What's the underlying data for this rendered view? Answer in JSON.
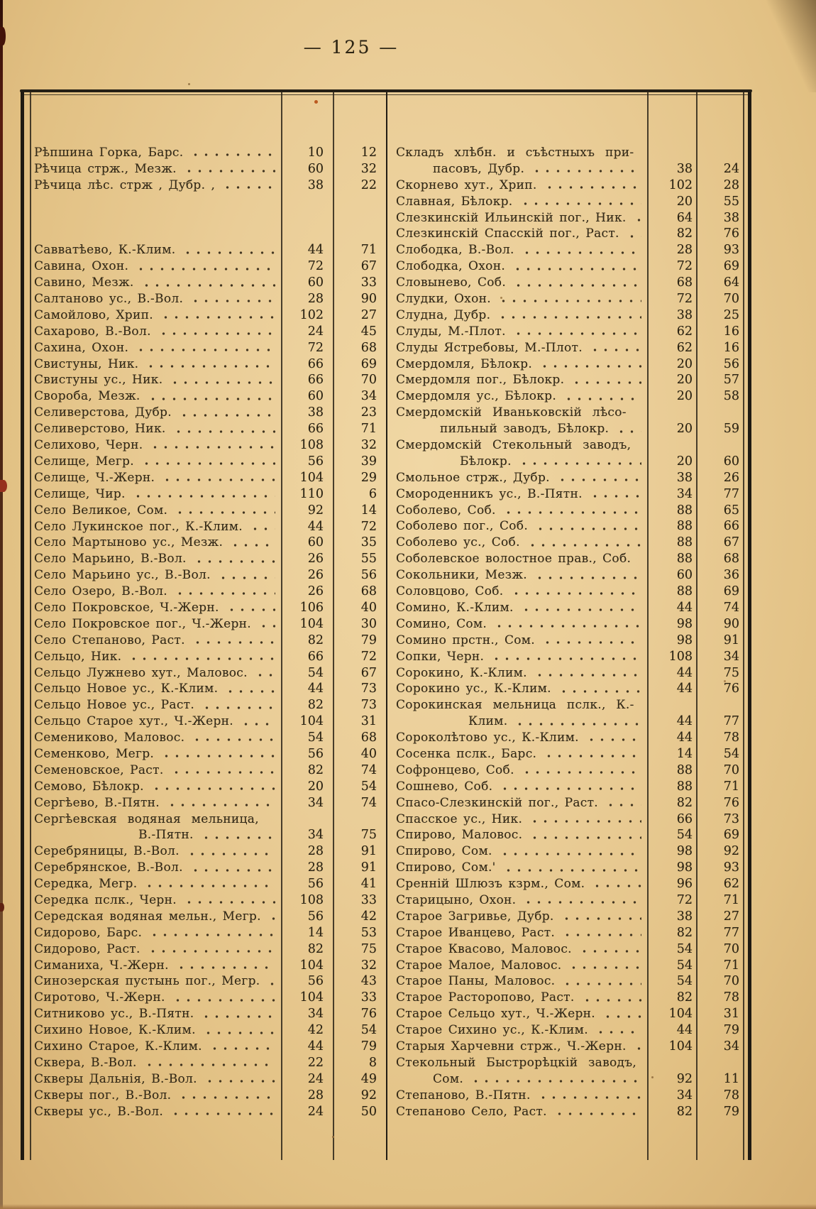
{
  "page": {
    "number": "125",
    "number_display": "— 125 —"
  },
  "colors": {
    "paper": "#eacd97",
    "ink": "#342a18",
    "rule": "#241f15",
    "red_edge": "#96301e"
  },
  "table": {
    "left": {
      "rows": [
        {
          "n": "Рѣпшина Горка, Барс.",
          "a": "10",
          "b": "12"
        },
        {
          "n": "Рѣчица стрж., Мезж.",
          "a": "60",
          "b": "32"
        },
        {
          "n": "Рѣчица лѣс. стрж , Дубр. ,",
          "a": "38",
          "b": "22",
          "gap": 3
        },
        {
          "n": "Савватѣево, К.-Клим.",
          "a": "44",
          "b": "71"
        },
        {
          "n": "Савина, Охон.",
          "a": "72",
          "b": "67"
        },
        {
          "n": "Савино, Мезж.",
          "a": "60",
          "b": "33"
        },
        {
          "n": "Салтаново ус., В.-Вол.",
          "a": "28",
          "b": "90"
        },
        {
          "n": "Самойлово, Хрип.",
          "a": "102",
          "b": "27"
        },
        {
          "n": "Сахарово, В.-Вол.",
          "a": "24",
          "b": "45"
        },
        {
          "n": "Сахина, Охон.",
          "a": "72",
          "b": "68"
        },
        {
          "n": "Свистуны, Ник.",
          "a": "66",
          "b": "69"
        },
        {
          "n": "Свистуны ус., Ник.",
          "a": "66",
          "b": "70"
        },
        {
          "n": "Свороба, Мезж.",
          "a": "60",
          "b": "34"
        },
        {
          "n": "Селиверстова, Дубр.",
          "a": "38",
          "b": "23"
        },
        {
          "n": "Селиверстово, Ник.",
          "a": "66",
          "b": "71"
        },
        {
          "n": "Селихово, Черн.",
          "a": "108",
          "b": "32"
        },
        {
          "n": "Селище, Мегр.",
          "a": "56",
          "b": "39"
        },
        {
          "n": "Селище, Ч.-Жерн.",
          "a": "104",
          "b": "29"
        },
        {
          "n": "Селище, Чир.",
          "a": "110",
          "b": "6"
        },
        {
          "n": "Село Великое, Сом.",
          "a": "92",
          "b": "14"
        },
        {
          "n": "Село Лукинское пог., К.-Клим.",
          "a": "44",
          "b": "72"
        },
        {
          "n": "Село Мартыново ус., Мезж.",
          "a": "60",
          "b": "35"
        },
        {
          "n": "Село Марьино, В.-Вол.",
          "a": "26",
          "b": "55"
        },
        {
          "n": "Село Марьино ус., В.-Вол.",
          "a": "26",
          "b": "56"
        },
        {
          "n": "Село Озеро, В.-Вол.",
          "a": "26",
          "b": "68"
        },
        {
          "n": "Село Покровское, Ч.-Жерн.",
          "a": "106",
          "b": "40"
        },
        {
          "n": "Село Покровское пог., Ч.-Жерн.",
          "a": "104",
          "b": "30"
        },
        {
          "n": "Село Степаново, Раст.",
          "a": "82",
          "b": "79"
        },
        {
          "n": "Сельцо, Ник.",
          "a": "66",
          "b": "72"
        },
        {
          "n": "Сельцо Лужнево хут., Маловос.",
          "a": "54",
          "b": "67"
        },
        {
          "n": "Сельцо Новое ус., К.-Клим.",
          "a": "44",
          "b": "73"
        },
        {
          "n": "Сельцо Новое ус., Раст.",
          "a": "82",
          "b": "73"
        },
        {
          "n": "Сельцо Старое хут., Ч.-Жерн.",
          "a": "104",
          "b": "31"
        },
        {
          "n": "Семениково, Маловос.",
          "a": "54",
          "b": "68"
        },
        {
          "n": "Семенково, Мегр.",
          "a": "56",
          "b": "40"
        },
        {
          "n": "Семеновское, Раст.",
          "a": "82",
          "b": "74"
        },
        {
          "n": "Семово, Бѣлокр.",
          "a": "20",
          "b": "54"
        },
        {
          "n": "Сергѣево, В.-Пятн.",
          "a": "34",
          "b": "74"
        },
        {
          "n": "Сергѣевская водяная мельница,",
          "n2": "В.-Пятн.",
          "i2": 147,
          "a": "34",
          "b": "75"
        },
        {
          "n": "Серебряницы, В.-Вол.",
          "a": "28",
          "b": "91"
        },
        {
          "n": "Серебрянское, В.-Вол.",
          "a": "28",
          "b": "91"
        },
        {
          "n": "Середка, Мегр.",
          "a": "56",
          "b": "41"
        },
        {
          "n": "Середка пслк., Черн.",
          "a": "108",
          "b": "33"
        },
        {
          "n": "Середская водяная мельн., Мегр.",
          "a": "56",
          "b": "42"
        },
        {
          "n": "Сидорово, Барс.",
          "a": "14",
          "b": "53"
        },
        {
          "n": "Сидорово, Раст.",
          "a": "82",
          "b": "75"
        },
        {
          "n": "Симаниха, Ч.-Жерн.",
          "a": "104",
          "b": "32"
        },
        {
          "n": "Синозерская пустынь пог., Мегр.",
          "a": "56",
          "b": "43"
        },
        {
          "n": "Сиротово, Ч.-Жерн.",
          "a": "104",
          "b": "33"
        },
        {
          "n": "Ситниково ус., В.-Пятн.",
          "a": "34",
          "b": "76"
        },
        {
          "n": "Сихино Новое, К.-Клим.",
          "a": "42",
          "b": "54"
        },
        {
          "n": "Сихино Старое, К.-Клим.",
          "a": "44",
          "b": "79"
        },
        {
          "n": "Сквера, В.-Вол.",
          "a": "22",
          "b": "8"
        },
        {
          "n": "Скверы Дальнія, В.-Вол.",
          "a": "24",
          "b": "49"
        },
        {
          "n": "Скверы пог., В.-Вол.",
          "a": "28",
          "b": "92"
        },
        {
          "n": "Скверы ус., В.-Вол.",
          "a": "24",
          "b": "50"
        }
      ]
    },
    "right": {
      "rows": [
        {
          "n": "Складъ хлѣбн. и съѣстныхъ при-",
          "n2": "пасовъ, Дубр.",
          "i2": 52,
          "a": "38",
          "b": "24"
        },
        {
          "n": "Скорнево хут., Хрип.",
          "a": "102",
          "b": "28"
        },
        {
          "n": "Славная, Бѣлокр.",
          "a": "20",
          "b": "55"
        },
        {
          "n": "Слезкинскій Ильинскій пог., Ник.",
          "a": "64",
          "b": "38"
        },
        {
          "n": "Слезкинскій Спасскій пог., Раст.",
          "a": "82",
          "b": "76"
        },
        {
          "n": "Слободка, В.-Вол.",
          "a": "28",
          "b": "93"
        },
        {
          "n": "Слободка, Охон.",
          "a": "72",
          "b": "69"
        },
        {
          "n": "Словынево, Соб.",
          "a": "68",
          "b": "64"
        },
        {
          "n": "Слудки, Охон.",
          "a": "72",
          "b": "70"
        },
        {
          "n": "Слудна, Дубр.",
          "a": "38",
          "b": "25"
        },
        {
          "n": "Слуды, М.-Плот.",
          "a": "62",
          "b": "16"
        },
        {
          "n": "Слуды Ястребовы, М.-Плот.",
          "a": "62",
          "b": "16"
        },
        {
          "n": "Смердомля, Бѣлокр.",
          "a": "20",
          "b": "56"
        },
        {
          "n": "Смердомля пог., Бѣлокр.",
          "a": "20",
          "b": "57"
        },
        {
          "n": "Смердомля ус., Бѣлокр.",
          "a": "20",
          "b": "58"
        },
        {
          "n": "Смердомскій Иваньковскій лѣсо-",
          "n2": "пильный заводъ, Бѣлокр.",
          "i2": 62,
          "a": "20",
          "b": "59"
        },
        {
          "n": "Смердомскій Стекольный заводъ,",
          "n2": "Бѣлокр.",
          "i2": 90,
          "a": "20",
          "b": "60"
        },
        {
          "n": "Смольное стрж., Дубр.",
          "a": "38",
          "b": "26"
        },
        {
          "n": "Смороденникъ ус., В.-Пятн.",
          "a": "34",
          "b": "77"
        },
        {
          "n": "Соболево, Соб.",
          "a": "88",
          "b": "65"
        },
        {
          "n": "Соболево пог., Соб.",
          "a": "88",
          "b": "66"
        },
        {
          "n": "Соболево ус., Соб.",
          "a": "88",
          "b": "67"
        },
        {
          "n": "Соболевское волостное прав., Соб.",
          "a": "88",
          "b": "68"
        },
        {
          "n": "Сокольники, Мезж.",
          "a": "60",
          "b": "36"
        },
        {
          "n": "Соловцово, Соб.",
          "a": "88",
          "b": "69"
        },
        {
          "n": "Сомино, К.-Клим.",
          "a": "44",
          "b": "74"
        },
        {
          "n": "Сомино, Сом.",
          "a": "98",
          "b": "90"
        },
        {
          "n": "Сомино прстн., Сом.",
          "a": "98",
          "b": "91"
        },
        {
          "n": "Сопки, Черн.",
          "a": "108",
          "b": "34"
        },
        {
          "n": "Сорокино, К.-Клим.",
          "a": "44",
          "b": "75"
        },
        {
          "n": "Сорокино ус., К.-Клим.",
          "a": "44",
          "b": "76"
        },
        {
          "n": "Сорокинская мельница пслк., К.-",
          "n2": "Клим.",
          "i2": 102,
          "a": "44",
          "b": "77"
        },
        {
          "n": "Сороколѣтово ус., К.-Клим.",
          "a": "44",
          "b": "78"
        },
        {
          "n": "Сосенка пслк., Барс.",
          "a": "14",
          "b": "54"
        },
        {
          "n": "Софронцево, Соб.",
          "a": "88",
          "b": "70"
        },
        {
          "n": "Сошнево, Соб.",
          "a": "88",
          "b": "71"
        },
        {
          "n": "Спасо-Слезкинскій пог., Раст.",
          "a": "82",
          "b": "76"
        },
        {
          "n": "Спасское ус., Ник.",
          "a": "66",
          "b": "73"
        },
        {
          "n": "Спирово, Маловос.",
          "a": "54",
          "b": "69"
        },
        {
          "n": "Спирово, Сом.",
          "a": "98",
          "b": "92"
        },
        {
          "n": "Спирово, Сом.'",
          "a": "98",
          "b": "93"
        },
        {
          "n": "Сренній Шлюзъ кзрм., Сом.",
          "a": "96",
          "b": "62"
        },
        {
          "n": "Старицыно, Охон.",
          "a": "72",
          "b": "71"
        },
        {
          "n": "Старое Загривье, Дубр.",
          "a": "38",
          "b": "27"
        },
        {
          "n": "Старое Иванцево, Раст.",
          "a": "82",
          "b": "77"
        },
        {
          "n": "Старое Квасово, Маловос.",
          "a": "54",
          "b": "70"
        },
        {
          "n": "Старое Малое, Маловос.",
          "a": "54",
          "b": "71"
        },
        {
          "n": "Старое Паны, Маловос.",
          "a": "54",
          "b": "70"
        },
        {
          "n": "Старое Расторопово, Раст.",
          "a": "82",
          "b": "78"
        },
        {
          "n": "Старое Сельцо хут., Ч.-Жерн.",
          "a": "104",
          "b": "31"
        },
        {
          "n": "Старое Сихино ус., К.-Клим.",
          "a": "44",
          "b": "79"
        },
        {
          "n": "Старыя Харчевни стрж., Ч.-Жерн.",
          "a": "104",
          "b": "34"
        },
        {
          "n": "Стекольный Быстрорѣцкій заводъ,",
          "n2": "Сом.",
          "i2": 52,
          "a": "92",
          "b": "11"
        },
        {
          "n": "Степаново, В.-Пятн.",
          "a": "34",
          "b": "78"
        },
        {
          "n": "Степаново Село, Раст.",
          "a": "82",
          "b": "79"
        }
      ]
    }
  }
}
